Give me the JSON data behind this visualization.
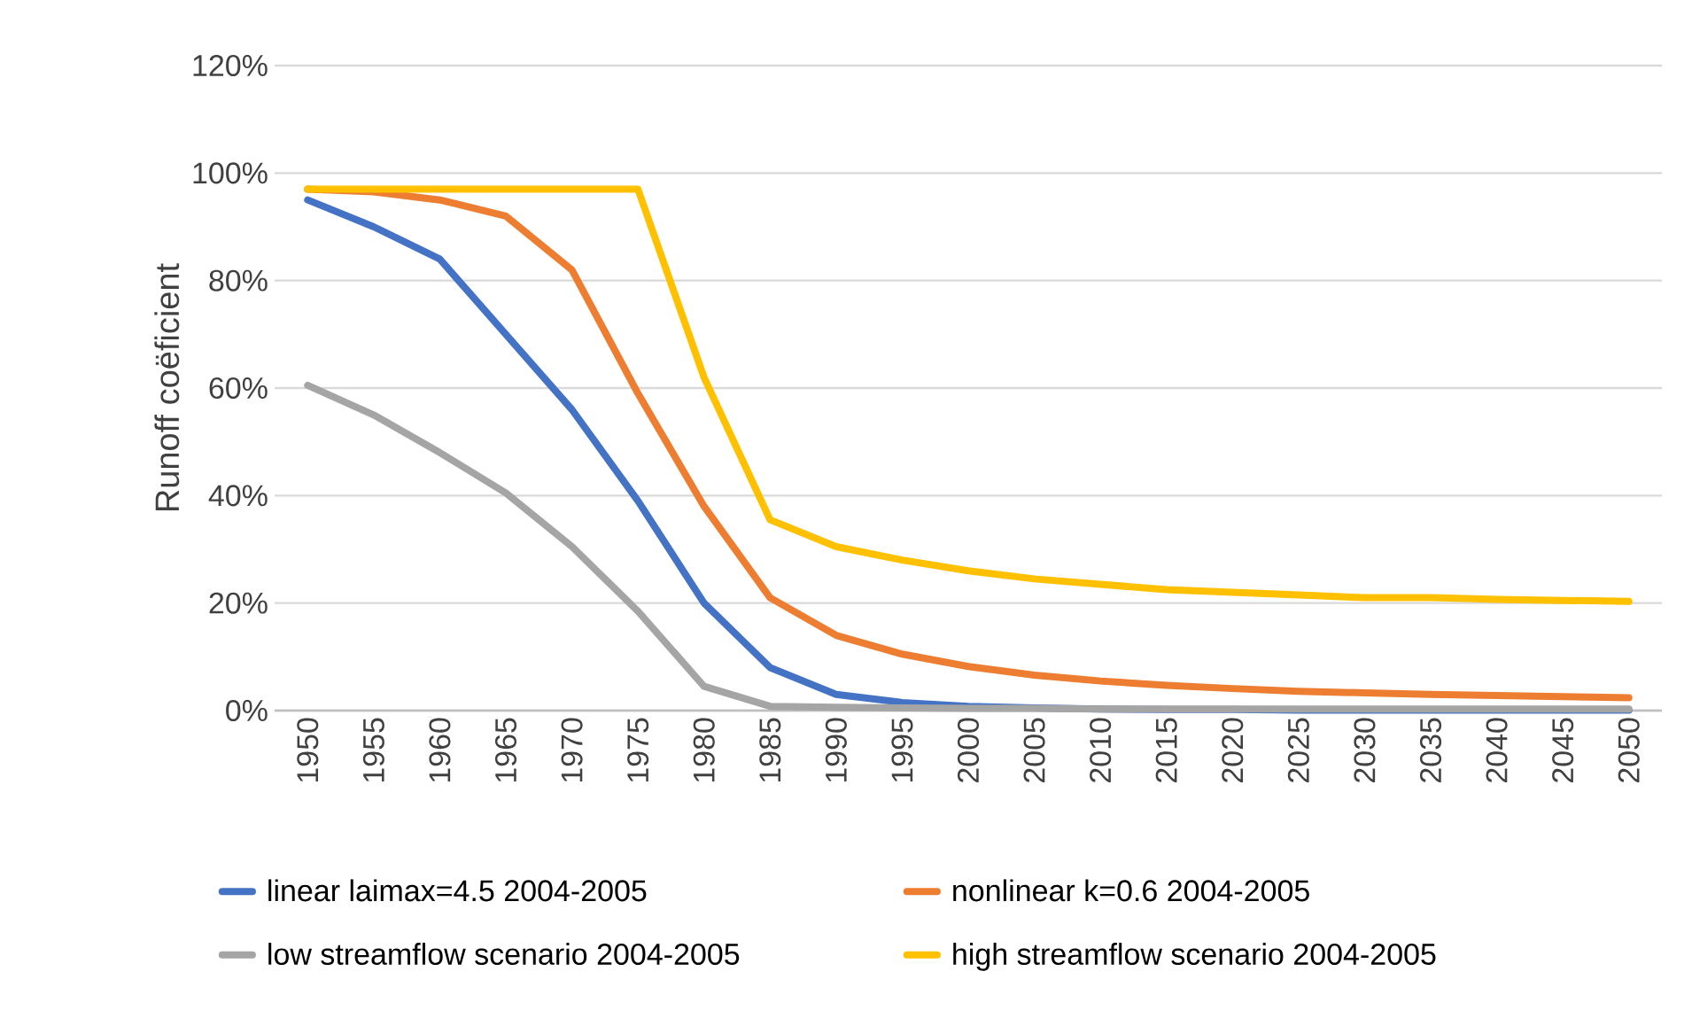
{
  "chart_data": {
    "type": "line",
    "ylabel": "Runoff coëficient",
    "categories": [
      "1950",
      "1955",
      "1960",
      "1965",
      "1970",
      "1975",
      "1980",
      "1985",
      "1990",
      "1995",
      "2000",
      "2005",
      "2010",
      "2015",
      "2020",
      "2025",
      "2030",
      "2035",
      "2040",
      "2045",
      "2050"
    ],
    "series": [
      {
        "name": "linear laimax=4.5 2004-2005",
        "color": "#4472c4",
        "values": [
          95,
          90,
          84,
          70,
          56,
          39,
          20,
          8,
          3,
          1.5,
          0.8,
          0.5,
          0.3,
          0.2,
          0.2,
          0.1,
          0.1,
          0.1,
          0.1,
          0.1,
          0.1
        ]
      },
      {
        "name": "nonlinear k=0.6 2004-2005",
        "color": "#ed7d31",
        "values": [
          97,
          96.5,
          95,
          92,
          82,
          59,
          38,
          21,
          14,
          10.5,
          8.2,
          6.6,
          5.5,
          4.7,
          4.1,
          3.6,
          3.3,
          3.0,
          2.8,
          2.6,
          2.4
        ]
      },
      {
        "name": "low streamflow scenario 2004-2005",
        "color": "#a5a5a5",
        "values": [
          60.5,
          55,
          48,
          40.5,
          30.5,
          18.5,
          4.5,
          0.8,
          0.6,
          0.5,
          0.4,
          0.4,
          0.3,
          0.3,
          0.3,
          0.3,
          0.3,
          0.3,
          0.3,
          0.3,
          0.3
        ]
      },
      {
        "name": "high streamflow scenario 2004-2005",
        "color": "#ffc000",
        "values": [
          97,
          97,
          97,
          97,
          97,
          97,
          62,
          35.5,
          30.5,
          28,
          26,
          24.5,
          23.5,
          22.5,
          22,
          21.5,
          21,
          21,
          20.7,
          20.5,
          20.3
        ]
      }
    ],
    "ylim": [
      0,
      120
    ],
    "yticks": [
      {
        "value": 0,
        "label": "0%"
      },
      {
        "value": 20,
        "label": "20%"
      },
      {
        "value": 40,
        "label": "40%"
      },
      {
        "value": 60,
        "label": "60%"
      },
      {
        "value": 80,
        "label": "80%"
      },
      {
        "value": 100,
        "label": "100%"
      },
      {
        "value": 120,
        "label": "120%"
      }
    ],
    "grid": "y",
    "legend": "bottom",
    "marker": "none",
    "line_style": "solid"
  }
}
